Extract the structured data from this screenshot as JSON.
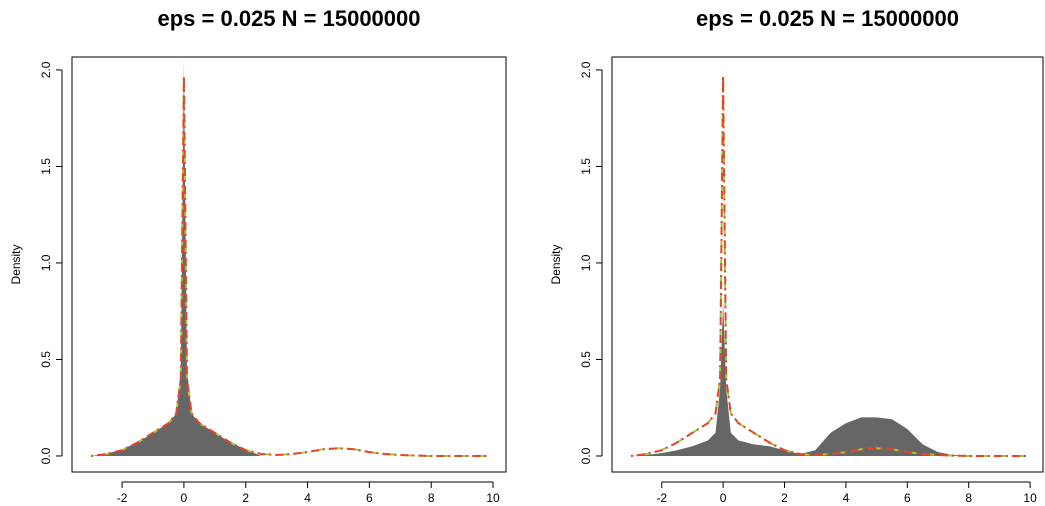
{
  "chart_data": [
    {
      "type": "density",
      "title": "eps = 0.025  N = 15000000",
      "ylabel": "Density",
      "x": [
        -3,
        -2.5,
        -2,
        -1.5,
        -1,
        -0.5,
        -0.25,
        -0.1,
        0,
        0.1,
        0.25,
        0.5,
        1,
        1.5,
        2,
        2.5,
        3,
        3.5,
        4,
        4.5,
        5,
        5.5,
        6,
        6.5,
        7,
        7.5,
        8,
        9,
        9.9
      ],
      "series": [
        {
          "color": "#666666",
          "area": true,
          "dash": false,
          "values": [
            0,
            0.01,
            0.035,
            0.07,
            0.12,
            0.17,
            0.22,
            0.45,
            2.04,
            0.45,
            0.22,
            0.17,
            0.12,
            0.07,
            0.035,
            0,
            0,
            0,
            0,
            0,
            0,
            0,
            0,
            0,
            0,
            0,
            0,
            0,
            0
          ]
        },
        {
          "color": "#9acd32",
          "area": false,
          "dash": true,
          "values": [
            0,
            0.01,
            0.03,
            0.07,
            0.12,
            0.17,
            0.22,
            0.4,
            1.97,
            0.4,
            0.22,
            0.17,
            0.12,
            0.07,
            0.03,
            0.01,
            0.005,
            0.01,
            0.02,
            0.035,
            0.04,
            0.035,
            0.02,
            0.01,
            0.005,
            0.002,
            0,
            0,
            0
          ]
        },
        {
          "color": "#e8412c",
          "area": false,
          "dash": true,
          "values": [
            0,
            0.01,
            0.03,
            0.07,
            0.12,
            0.17,
            0.22,
            0.4,
            1.97,
            0.4,
            0.22,
            0.17,
            0.12,
            0.07,
            0.03,
            0.01,
            0.005,
            0.01,
            0.02,
            0.035,
            0.04,
            0.035,
            0.02,
            0.01,
            0.005,
            0.002,
            0,
            0,
            0
          ]
        }
      ],
      "xlim": [
        -3.62,
        10.42
      ],
      "xticks": [
        -2,
        0,
        2,
        4,
        6,
        8,
        10
      ],
      "ylim": [
        -0.083,
        2.067
      ],
      "yticks": [
        {
          "value": 0,
          "label": "0.0"
        },
        0.5,
        {
          "value": 1,
          "label": "1.0"
        },
        1.5,
        {
          "value": 2,
          "label": "2.0"
        }
      ]
    },
    {
      "type": "density",
      "title": "eps = 0.025  N = 15000000",
      "ylabel": "Density",
      "x": [
        -3,
        -2.5,
        -2,
        -1.5,
        -1,
        -0.5,
        -0.25,
        -0.1,
        0,
        0.1,
        0.25,
        0.5,
        1,
        1.5,
        2,
        2.5,
        3,
        3.5,
        4,
        4.5,
        5,
        5.5,
        6,
        6.5,
        7,
        7.5,
        8,
        9,
        9.9
      ],
      "series": [
        {
          "color": "#666666",
          "area": true,
          "dash": false,
          "values": [
            0,
            0.005,
            0.015,
            0.03,
            0.05,
            0.08,
            0.12,
            0.35,
            0.8,
            0.35,
            0.12,
            0.08,
            0.06,
            0.05,
            0.03,
            0.01,
            0.03,
            0.12,
            0.17,
            0.2,
            0.2,
            0.19,
            0.14,
            0.06,
            0.02,
            0.005,
            0,
            0,
            0
          ]
        },
        {
          "color": "#9acd32",
          "area": false,
          "dash": true,
          "values": [
            0,
            0.01,
            0.03,
            0.07,
            0.12,
            0.17,
            0.22,
            0.4,
            1.97,
            0.4,
            0.22,
            0.17,
            0.12,
            0.07,
            0.03,
            0.01,
            0.005,
            0.01,
            0.02,
            0.035,
            0.04,
            0.035,
            0.02,
            0.01,
            0.005,
            0.002,
            0,
            0,
            0
          ]
        },
        {
          "color": "#e8412c",
          "area": false,
          "dash": true,
          "values": [
            0,
            0.01,
            0.03,
            0.07,
            0.12,
            0.17,
            0.22,
            0.4,
            1.97,
            0.4,
            0.22,
            0.17,
            0.12,
            0.07,
            0.03,
            0.01,
            0.005,
            0.01,
            0.02,
            0.035,
            0.04,
            0.035,
            0.02,
            0.01,
            0.005,
            0.002,
            0,
            0,
            0
          ]
        }
      ],
      "xlim": [
        -3.62,
        10.42
      ],
      "xticks": [
        -2,
        0,
        2,
        4,
        6,
        8,
        10
      ],
      "ylim": [
        -0.083,
        2.067
      ],
      "yticks": [
        {
          "value": 0,
          "label": "0.0"
        },
        0.5,
        {
          "value": 1,
          "label": "1.0"
        },
        1.5,
        {
          "value": 2,
          "label": "2.0"
        }
      ]
    }
  ]
}
